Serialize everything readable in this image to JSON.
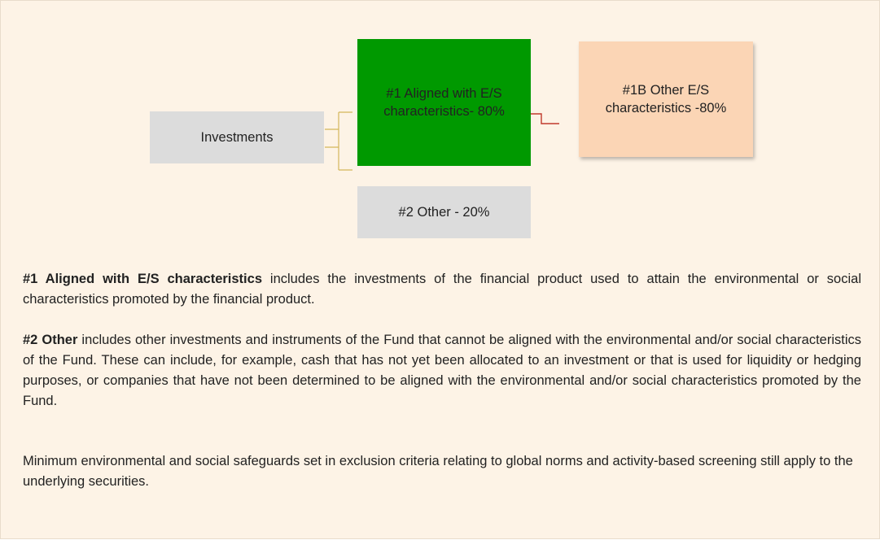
{
  "nodes": [
    {
      "label": "Investments"
    },
    {
      "label": "#1 Aligned with E/S characteristics- 80%"
    },
    {
      "label": "#1B Other E/S characteristics -80%"
    },
    {
      "label": "#2 Other - 20%"
    }
  ],
  "paragraphs": [
    {
      "lead": "#1 Aligned with E/S characteristics",
      "text": " includes the investments of the financial product used to attain the environmental or social characteristics promoted by the financial product."
    },
    {
      "lead": "#2 Other",
      "text": " includes other investments and instruments of the Fund that cannot be aligned with the environmental and/or social characteristics of the Fund. These can include, for example, cash that has not yet been allocated to an investment or that is used for liquidity or hedging purposes, or companies that have not been determined to be aligned with the environmental and/or social characteristics promoted by the Fund."
    },
    {
      "text": "Minimum environmental and social safeguards set in exclusion criteria relating to global norms and activity-based screening still apply to the underlying securities."
    }
  ]
}
